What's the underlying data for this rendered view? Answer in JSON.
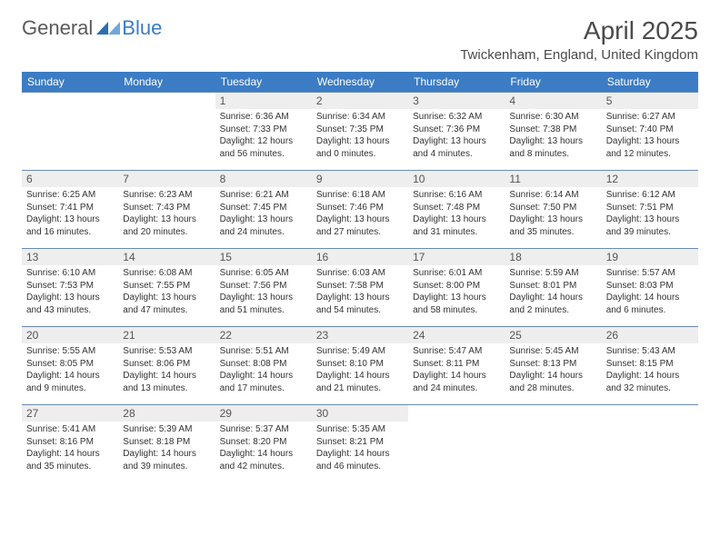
{
  "brand": {
    "general": "General",
    "blue": "Blue"
  },
  "title": "April 2025",
  "location": "Twickenham, England, United Kingdom",
  "colors": {
    "header_bg": "#3b7cc4",
    "header_text": "#ffffff",
    "daynum_bg": "#eeeeee",
    "cell_border": "#6a8bb0",
    "body_text": "#333333"
  },
  "weekdays": [
    "Sunday",
    "Monday",
    "Tuesday",
    "Wednesday",
    "Thursday",
    "Friday",
    "Saturday"
  ],
  "weeks": [
    [
      null,
      null,
      {
        "n": "1",
        "sunrise": "6:36 AM",
        "sunset": "7:33 PM",
        "daylight": "12 hours and 56 minutes."
      },
      {
        "n": "2",
        "sunrise": "6:34 AM",
        "sunset": "7:35 PM",
        "daylight": "13 hours and 0 minutes."
      },
      {
        "n": "3",
        "sunrise": "6:32 AM",
        "sunset": "7:36 PM",
        "daylight": "13 hours and 4 minutes."
      },
      {
        "n": "4",
        "sunrise": "6:30 AM",
        "sunset": "7:38 PM",
        "daylight": "13 hours and 8 minutes."
      },
      {
        "n": "5",
        "sunrise": "6:27 AM",
        "sunset": "7:40 PM",
        "daylight": "13 hours and 12 minutes."
      }
    ],
    [
      {
        "n": "6",
        "sunrise": "6:25 AM",
        "sunset": "7:41 PM",
        "daylight": "13 hours and 16 minutes."
      },
      {
        "n": "7",
        "sunrise": "6:23 AM",
        "sunset": "7:43 PM",
        "daylight": "13 hours and 20 minutes."
      },
      {
        "n": "8",
        "sunrise": "6:21 AM",
        "sunset": "7:45 PM",
        "daylight": "13 hours and 24 minutes."
      },
      {
        "n": "9",
        "sunrise": "6:18 AM",
        "sunset": "7:46 PM",
        "daylight": "13 hours and 27 minutes."
      },
      {
        "n": "10",
        "sunrise": "6:16 AM",
        "sunset": "7:48 PM",
        "daylight": "13 hours and 31 minutes."
      },
      {
        "n": "11",
        "sunrise": "6:14 AM",
        "sunset": "7:50 PM",
        "daylight": "13 hours and 35 minutes."
      },
      {
        "n": "12",
        "sunrise": "6:12 AM",
        "sunset": "7:51 PM",
        "daylight": "13 hours and 39 minutes."
      }
    ],
    [
      {
        "n": "13",
        "sunrise": "6:10 AM",
        "sunset": "7:53 PM",
        "daylight": "13 hours and 43 minutes."
      },
      {
        "n": "14",
        "sunrise": "6:08 AM",
        "sunset": "7:55 PM",
        "daylight": "13 hours and 47 minutes."
      },
      {
        "n": "15",
        "sunrise": "6:05 AM",
        "sunset": "7:56 PM",
        "daylight": "13 hours and 51 minutes."
      },
      {
        "n": "16",
        "sunrise": "6:03 AM",
        "sunset": "7:58 PM",
        "daylight": "13 hours and 54 minutes."
      },
      {
        "n": "17",
        "sunrise": "6:01 AM",
        "sunset": "8:00 PM",
        "daylight": "13 hours and 58 minutes."
      },
      {
        "n": "18",
        "sunrise": "5:59 AM",
        "sunset": "8:01 PM",
        "daylight": "14 hours and 2 minutes."
      },
      {
        "n": "19",
        "sunrise": "5:57 AM",
        "sunset": "8:03 PM",
        "daylight": "14 hours and 6 minutes."
      }
    ],
    [
      {
        "n": "20",
        "sunrise": "5:55 AM",
        "sunset": "8:05 PM",
        "daylight": "14 hours and 9 minutes."
      },
      {
        "n": "21",
        "sunrise": "5:53 AM",
        "sunset": "8:06 PM",
        "daylight": "14 hours and 13 minutes."
      },
      {
        "n": "22",
        "sunrise": "5:51 AM",
        "sunset": "8:08 PM",
        "daylight": "14 hours and 17 minutes."
      },
      {
        "n": "23",
        "sunrise": "5:49 AM",
        "sunset": "8:10 PM",
        "daylight": "14 hours and 21 minutes."
      },
      {
        "n": "24",
        "sunrise": "5:47 AM",
        "sunset": "8:11 PM",
        "daylight": "14 hours and 24 minutes."
      },
      {
        "n": "25",
        "sunrise": "5:45 AM",
        "sunset": "8:13 PM",
        "daylight": "14 hours and 28 minutes."
      },
      {
        "n": "26",
        "sunrise": "5:43 AM",
        "sunset": "8:15 PM",
        "daylight": "14 hours and 32 minutes."
      }
    ],
    [
      {
        "n": "27",
        "sunrise": "5:41 AM",
        "sunset": "8:16 PM",
        "daylight": "14 hours and 35 minutes."
      },
      {
        "n": "28",
        "sunrise": "5:39 AM",
        "sunset": "8:18 PM",
        "daylight": "14 hours and 39 minutes."
      },
      {
        "n": "29",
        "sunrise": "5:37 AM",
        "sunset": "8:20 PM",
        "daylight": "14 hours and 42 minutes."
      },
      {
        "n": "30",
        "sunrise": "5:35 AM",
        "sunset": "8:21 PM",
        "daylight": "14 hours and 46 minutes."
      },
      null,
      null,
      null
    ]
  ],
  "labels": {
    "sunrise": "Sunrise:",
    "sunset": "Sunset:",
    "daylight": "Daylight:"
  }
}
